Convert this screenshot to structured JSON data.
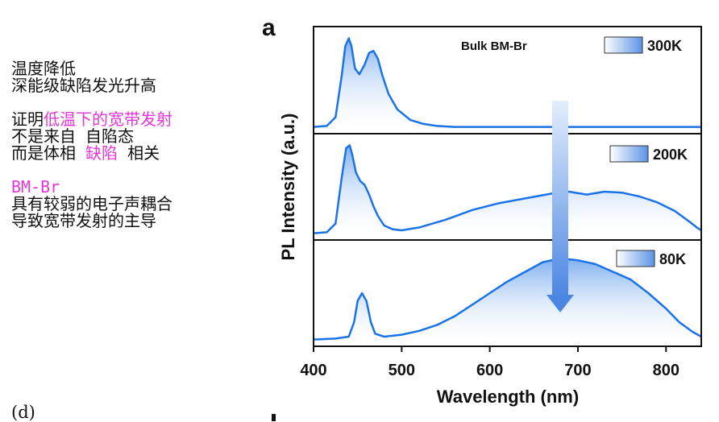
{
  "notes": {
    "line1": "温度降低",
    "line2": "深能级缺陷发光升高",
    "line3_prefix": "证明",
    "line3_highlight": "低温下的宽带发射",
    "line4": "不是来自 自陷态",
    "line5_prefix": "而是体相 ",
    "line5_highlight": "缺陷",
    "line5_suffix": " 相关",
    "line6": "BM-Br",
    "line7": "具有较弱的电子声耦合",
    "line8": "导致宽带发射的主导",
    "fig_label": "(d)"
  },
  "colors": {
    "curve": "#1a73e8",
    "fill": "#9ec5f5",
    "arrow": "#5b93e6",
    "highlight": "#e636d8"
  },
  "chart_data": {
    "type": "line",
    "panel_label": "a",
    "sample_label": "Bulk BM-Br",
    "xlabel": "Wavelength (nm)",
    "ylabel": "PL Intensity (a.u.)",
    "xlim": [
      400,
      840
    ],
    "xticks": [
      400,
      500,
      600,
      700,
      800
    ],
    "ylim": [
      0,
      1
    ],
    "series": [
      {
        "name": "300K",
        "x": [
          400,
          415,
          425,
          432,
          436,
          440,
          443,
          447,
          452,
          458,
          463,
          468,
          473,
          478,
          485,
          495,
          510,
          525,
          540,
          560,
          600,
          700,
          840
        ],
        "y": [
          0.02,
          0.03,
          0.12,
          0.55,
          0.85,
          0.93,
          0.85,
          0.62,
          0.56,
          0.66,
          0.78,
          0.8,
          0.72,
          0.55,
          0.36,
          0.2,
          0.09,
          0.05,
          0.03,
          0.02,
          0.02,
          0.02,
          0.02
        ]
      },
      {
        "name": "200K",
        "x": [
          400,
          415,
          425,
          432,
          437,
          441,
          444,
          448,
          453,
          458,
          463,
          468,
          473,
          480,
          490,
          500,
          520,
          550,
          580,
          610,
          640,
          670,
          690,
          710,
          730,
          750,
          770,
          790,
          810,
          825,
          835,
          840
        ],
        "y": [
          0.02,
          0.03,
          0.12,
          0.6,
          0.9,
          0.93,
          0.83,
          0.65,
          0.56,
          0.52,
          0.42,
          0.3,
          0.2,
          0.1,
          0.06,
          0.05,
          0.08,
          0.16,
          0.26,
          0.33,
          0.38,
          0.43,
          0.45,
          0.42,
          0.45,
          0.44,
          0.4,
          0.34,
          0.25,
          0.15,
          0.08,
          0.05
        ]
      },
      {
        "name": "80K",
        "x": [
          400,
          425,
          440,
          446,
          450,
          455,
          460,
          465,
          470,
          480,
          500,
          520,
          540,
          560,
          580,
          600,
          620,
          640,
          660,
          680,
          700,
          720,
          740,
          760,
          780,
          800,
          815,
          830,
          840
        ],
        "y": [
          0.02,
          0.03,
          0.05,
          0.2,
          0.42,
          0.5,
          0.42,
          0.2,
          0.08,
          0.05,
          0.07,
          0.11,
          0.17,
          0.26,
          0.38,
          0.5,
          0.62,
          0.72,
          0.82,
          0.86,
          0.84,
          0.8,
          0.72,
          0.64,
          0.5,
          0.34,
          0.2,
          0.1,
          0.05
        ]
      }
    ]
  }
}
